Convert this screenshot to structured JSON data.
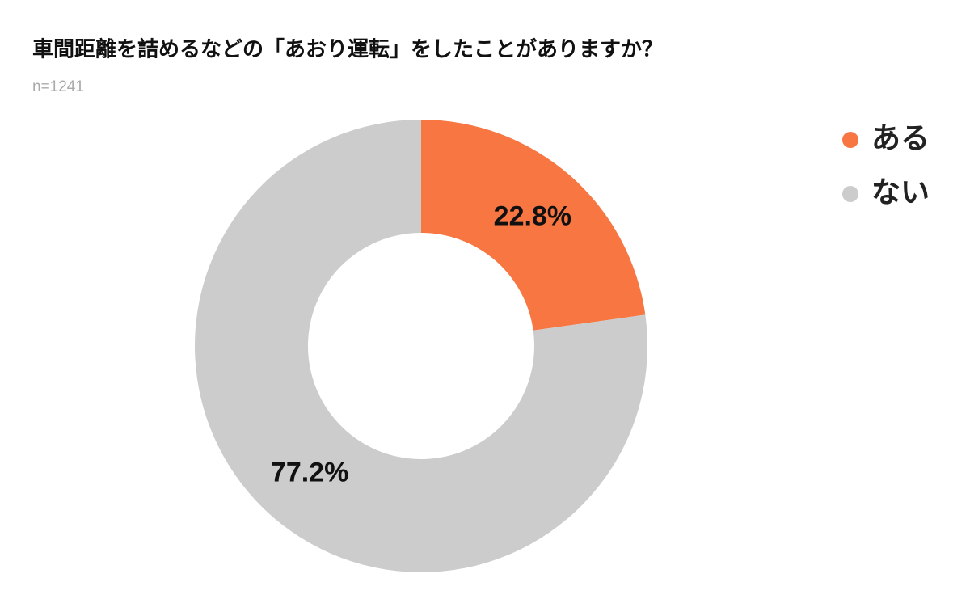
{
  "chart_data": {
    "type": "donut",
    "title": "車間距離を詰めるなどの「あおり運転」をしたことがありますか？",
    "subtitle": "n=1241",
    "categories": [
      "ある",
      "ない"
    ],
    "values": [
      22.8,
      77.2
    ],
    "value_labels": [
      "22.8%",
      "77.2%"
    ],
    "colors": [
      "#f77642",
      "#cccccc"
    ],
    "legend": "top-right"
  }
}
